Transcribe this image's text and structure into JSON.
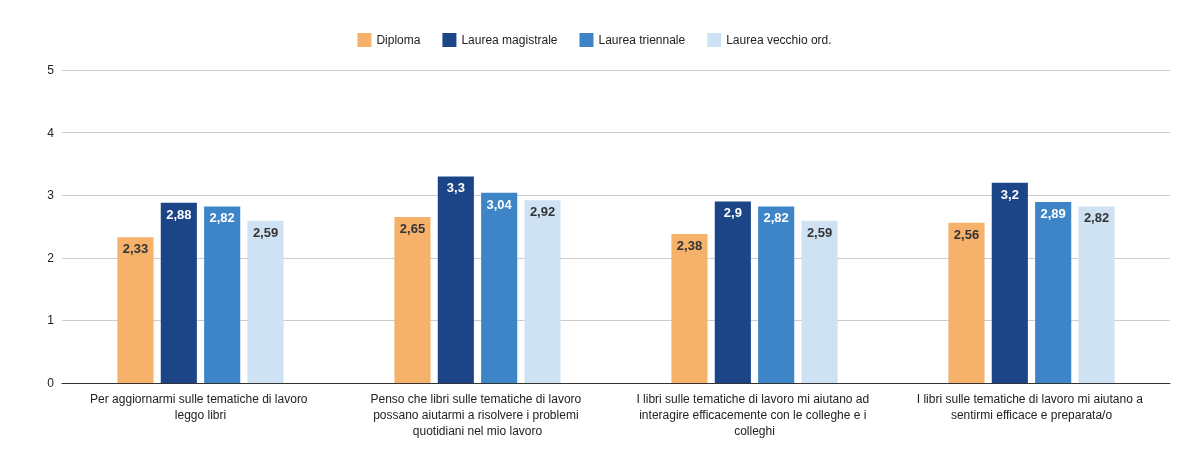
{
  "chart_data": {
    "type": "bar",
    "categories": [
      "Per aggiornarmi sulle tematiche di lavoro leggo libri",
      "Penso che libri sulle tematiche di lavoro possano aiutarmi a risolvere i problemi quotidiani nel mio lavoro",
      "I libri sulle tematiche di lavoro mi aiutano ad interagire efficacemente con le colleghe e i colleghi",
      "I libri sulle tematiche di lavoro mi aiutano a sentirmi efficace e preparata/o"
    ],
    "series": [
      {
        "name": "Diploma",
        "color": "#f6b26b",
        "values": [
          2.33,
          2.65,
          2.38,
          2.56
        ],
        "value_labels": [
          "2,33",
          "2,65",
          "2,38",
          "2,56"
        ]
      },
      {
        "name": "Laurea magistrale",
        "color": "#1c4587",
        "values": [
          2.88,
          3.3,
          2.9,
          3.2
        ],
        "value_labels": [
          "2,88",
          "3,3",
          "2,9",
          "3,2"
        ]
      },
      {
        "name": "Laurea triennale",
        "color": "#3d85c6",
        "values": [
          2.82,
          3.04,
          2.82,
          2.89
        ],
        "value_labels": [
          "2,82",
          "3,04",
          "2,82",
          "2,89"
        ]
      },
      {
        "name": "Laurea vecchio ord.",
        "color": "#cfe2f3",
        "values": [
          2.59,
          2.92,
          2.59,
          2.82
        ],
        "value_labels": [
          "2,59",
          "2,92",
          "2,59",
          "2,82"
        ]
      }
    ],
    "ylim": [
      0,
      5
    ],
    "yticks": [
      0,
      1,
      2,
      3,
      4,
      5
    ],
    "grid": "y",
    "legend": "top"
  }
}
